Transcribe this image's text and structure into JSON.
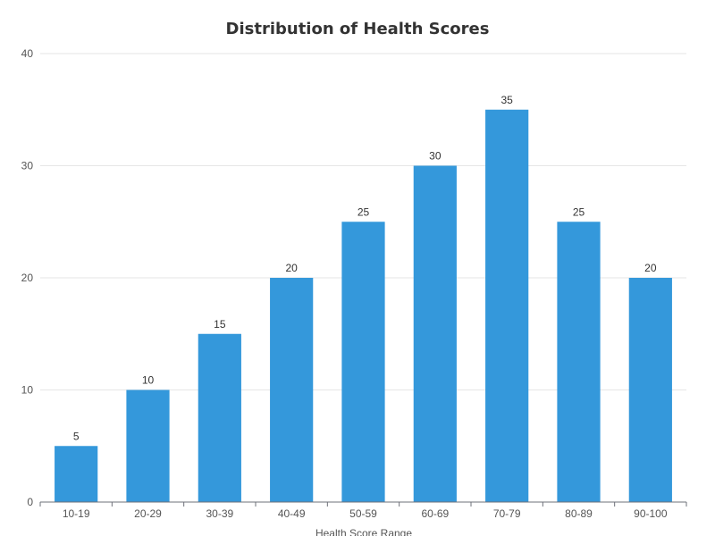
{
  "chart_data": {
    "type": "bar",
    "title": "Distribution of Health Scores",
    "xlabel": "Health Score Range",
    "ylabel": "",
    "categories": [
      "10-19",
      "20-29",
      "30-39",
      "40-49",
      "50-59",
      "60-69",
      "70-79",
      "80-89",
      "90-100"
    ],
    "values": [
      5,
      10,
      15,
      20,
      25,
      30,
      35,
      25,
      20
    ],
    "ylim": [
      0,
      40
    ],
    "yticks": [
      0,
      10,
      20,
      30,
      40
    ],
    "grid": true,
    "legend": "none",
    "bar_color": "#3498db"
  }
}
